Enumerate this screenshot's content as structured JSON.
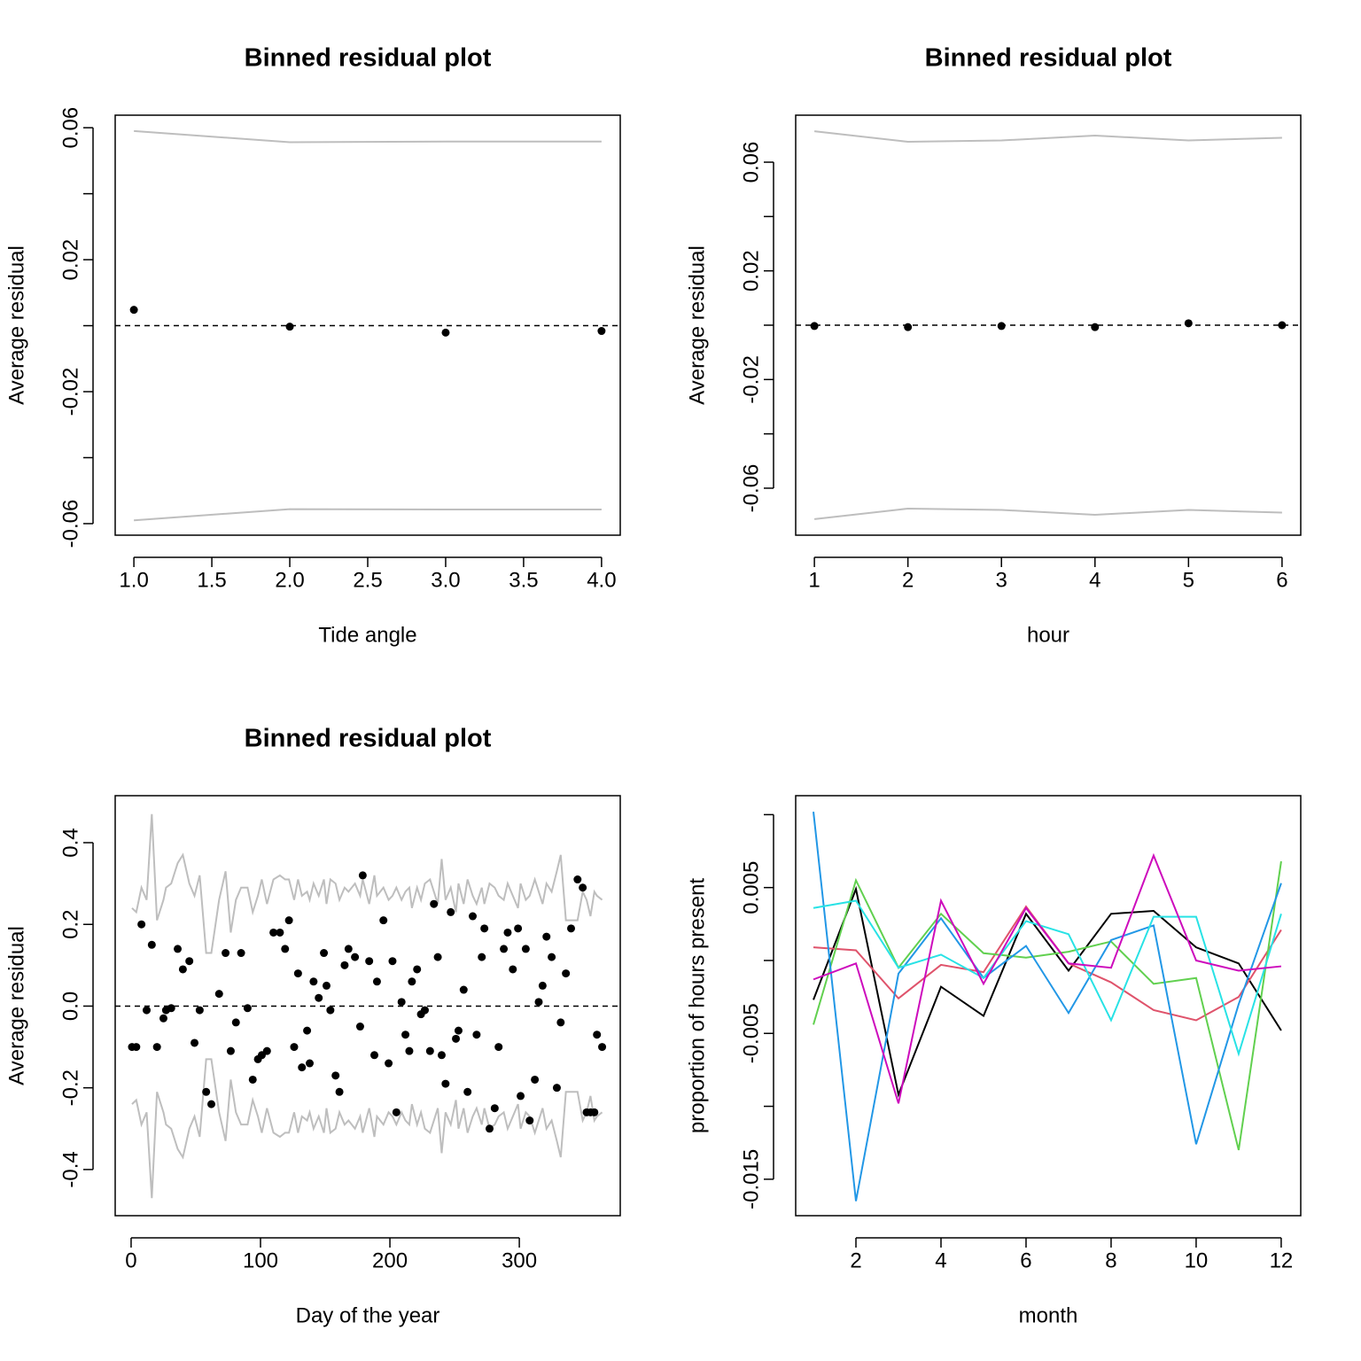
{
  "chart_data": [
    {
      "type": "scatter",
      "title": "Binned residual plot",
      "x_label": "Tide angle",
      "y_label": "Average residual",
      "x": [
        1,
        2,
        3,
        4
      ],
      "values": [
        0.0048,
        -0.0003,
        -0.0021,
        -0.0016
      ],
      "band_upper": [
        0.059,
        0.0556,
        0.0558,
        0.0558
      ],
      "band_lower": [
        -0.059,
        -0.0556,
        -0.0557,
        -0.0557
      ],
      "band_color": "#bebebe",
      "point_color": "#000000",
      "hline": 0,
      "xlim": [
        0.88,
        4.12
      ],
      "ylim": [
        -0.0635,
        0.0638
      ],
      "xticks": [
        {
          "value": 1,
          "label": "1.0"
        },
        1.5,
        {
          "value": 2,
          "label": "2.0"
        },
        2.5,
        {
          "value": 3,
          "label": "3.0"
        },
        3.5,
        {
          "value": 4,
          "label": "4.0"
        }
      ],
      "yticks": [
        -0.06,
        -0.02,
        0.02,
        0.06
      ],
      "yminor_ticks": [
        -0.04,
        0,
        0.04
      ]
    },
    {
      "type": "scatter",
      "title": "Binned residual plot",
      "x_label": "hour",
      "y_label": "Average residual",
      "x": [
        1,
        2,
        3,
        4,
        5,
        6
      ],
      "values": [
        -0.0003,
        -0.0007,
        -0.0003,
        -0.0007,
        0.0007,
        0
      ],
      "band_upper": [
        0.0714,
        0.0675,
        0.068,
        0.0698,
        0.068,
        0.069
      ],
      "band_lower": [
        -0.0714,
        -0.0675,
        -0.068,
        -0.0698,
        -0.068,
        -0.069
      ],
      "band_color": "#bebebe",
      "point_color": "#000000",
      "hline": 0,
      "xlim": [
        0.8,
        6.2
      ],
      "ylim": [
        -0.0773,
        0.0773
      ],
      "xticks": [
        1,
        2,
        3,
        4,
        5,
        6
      ],
      "yticks": [
        -0.06,
        -0.02,
        0.02,
        0.06
      ],
      "yminor_ticks": [
        -0.04,
        0,
        0.04
      ]
    },
    {
      "type": "scatter",
      "title": "Binned residual plot",
      "x_label": "Day of the year",
      "y_label": "Average residual",
      "x": [
        0.7,
        4,
        8,
        12,
        16,
        20,
        25,
        27,
        31,
        36,
        40,
        45,
        49,
        53,
        58,
        62,
        68,
        73,
        77,
        81,
        85,
        90,
        94,
        98,
        101,
        105,
        110,
        115,
        119,
        122,
        126,
        129,
        132,
        136,
        138,
        141,
        145,
        149,
        151,
        154,
        158,
        161,
        165,
        168,
        173,
        177,
        179,
        184,
        188,
        190,
        195,
        199,
        202,
        205,
        209,
        212,
        215,
        217,
        221,
        224,
        227,
        231,
        234,
        237,
        240,
        243,
        247,
        251,
        253,
        257,
        260,
        264,
        267,
        271,
        273,
        277,
        281,
        284,
        288,
        291,
        295,
        299,
        301,
        305,
        308,
        312,
        315,
        318,
        321,
        325,
        329,
        332,
        336,
        340,
        345,
        349,
        352,
        355,
        358,
        360,
        364
      ],
      "values": [
        -0.1,
        -0.1,
        0.2,
        -0.01,
        0.15,
        -0.1,
        -0.03,
        -0.01,
        -0.005,
        0.14,
        0.09,
        0.11,
        -0.09,
        -0.01,
        -0.21,
        -0.24,
        0.03,
        0.13,
        -0.11,
        -0.04,
        0.13,
        -0.005,
        -0.18,
        -0.13,
        -0.12,
        -0.11,
        0.18,
        0.18,
        0.14,
        0.21,
        -0.1,
        0.08,
        -0.15,
        -0.06,
        -0.14,
        0.06,
        0.02,
        0.13,
        0.05,
        -0.01,
        -0.17,
        -0.21,
        0.1,
        0.14,
        0.12,
        -0.05,
        0.32,
        0.11,
        -0.12,
        0.06,
        0.21,
        -0.14,
        0.11,
        -0.26,
        0.01,
        -0.07,
        -0.11,
        0.06,
        0.09,
        -0.02,
        -0.01,
        -0.11,
        0.25,
        0.12,
        -0.12,
        -0.19,
        0.23,
        -0.08,
        -0.06,
        0.04,
        -0.21,
        0.22,
        -0.07,
        0.12,
        0.19,
        -0.3,
        -0.25,
        -0.1,
        0.14,
        0.18,
        0.09,
        0.19,
        -0.22,
        0.14,
        -0.28,
        -0.18,
        0.01,
        0.05,
        0.17,
        0.12,
        -0.2,
        -0.04,
        0.08,
        0.19,
        0.31,
        0.29,
        -0.26,
        -0.26,
        -0.26,
        -0.07,
        -0.1
      ],
      "band_upper": [
        0.24,
        0.23,
        0.29,
        0.26,
        0.47,
        0.21,
        0.26,
        0.29,
        0.3,
        0.35,
        0.37,
        0.3,
        0.27,
        0.32,
        0.13,
        0.13,
        0.26,
        0.33,
        0.18,
        0.26,
        0.29,
        0.29,
        0.23,
        0.27,
        0.31,
        0.25,
        0.31,
        0.32,
        0.31,
        0.31,
        0.26,
        0.31,
        0.27,
        0.28,
        0.26,
        0.3,
        0.27,
        0.31,
        0.25,
        0.31,
        0.3,
        0.26,
        0.29,
        0.28,
        0.3,
        0.27,
        0.31,
        0.25,
        0.32,
        0.27,
        0.29,
        0.26,
        0.27,
        0.29,
        0.26,
        0.28,
        0.29,
        0.24,
        0.29,
        0.26,
        0.3,
        0.31,
        0.28,
        0.25,
        0.36,
        0.26,
        0.29,
        0.23,
        0.3,
        0.25,
        0.31,
        0.27,
        0.25,
        0.29,
        0.25,
        0.3,
        0.29,
        0.27,
        0.26,
        0.3,
        0.27,
        0.24,
        0.3,
        0.26,
        0.27,
        0.31,
        0.28,
        0.25,
        0.3,
        0.28,
        0.33,
        0.37,
        0.21,
        0.21,
        0.21,
        0.28,
        0.26,
        0.22,
        0.28,
        0.27,
        0.26
      ],
      "band_lower": [
        -0.24,
        -0.23,
        -0.29,
        -0.26,
        -0.47,
        -0.21,
        -0.26,
        -0.29,
        -0.3,
        -0.35,
        -0.37,
        -0.3,
        -0.27,
        -0.32,
        -0.13,
        -0.13,
        -0.26,
        -0.33,
        -0.18,
        -0.26,
        -0.29,
        -0.29,
        -0.23,
        -0.27,
        -0.31,
        -0.25,
        -0.31,
        -0.32,
        -0.31,
        -0.31,
        -0.26,
        -0.31,
        -0.27,
        -0.28,
        -0.26,
        -0.3,
        -0.27,
        -0.31,
        -0.25,
        -0.31,
        -0.3,
        -0.26,
        -0.29,
        -0.28,
        -0.3,
        -0.27,
        -0.31,
        -0.25,
        -0.32,
        -0.27,
        -0.29,
        -0.26,
        -0.27,
        -0.29,
        -0.26,
        -0.28,
        -0.29,
        -0.24,
        -0.29,
        -0.26,
        -0.3,
        -0.31,
        -0.28,
        -0.25,
        -0.36,
        -0.26,
        -0.29,
        -0.23,
        -0.3,
        -0.25,
        -0.31,
        -0.27,
        -0.25,
        -0.29,
        -0.25,
        -0.3,
        -0.29,
        -0.27,
        -0.26,
        -0.3,
        -0.27,
        -0.24,
        -0.3,
        -0.26,
        -0.27,
        -0.31,
        -0.28,
        -0.25,
        -0.3,
        -0.28,
        -0.33,
        -0.37,
        -0.21,
        -0.21,
        -0.21,
        -0.28,
        -0.26,
        -0.22,
        -0.28,
        -0.27,
        -0.26
      ],
      "band_color": "#bebebe",
      "point_color": "#000000",
      "hline": 0,
      "xlim": [
        -12.3,
        378
      ],
      "ylim": [
        -0.513,
        0.515
      ],
      "xticks": [
        0,
        100,
        200,
        300
      ],
      "yticks": [
        -0.4,
        -0.2,
        {
          "value": 0,
          "label": "0.0"
        },
        0.2,
        0.4
      ]
    },
    {
      "type": "line",
      "x_label": "month",
      "y_label": "proportion of hours present",
      "x": [
        1,
        2,
        3,
        4,
        5,
        6,
        7,
        8,
        9,
        10,
        11,
        12
      ],
      "series": [
        {
          "color": "#000000",
          "values": [
            -0.0027,
            0.0049,
            -0.0092,
            -0.0018,
            -0.0038,
            0.0032,
            -0.0007,
            0.0032,
            0.0034,
            0.0009,
            -0.0002,
            -0.0048
          ]
        },
        {
          "color": "#DF536B",
          "values": [
            0.0009,
            0.0007,
            -0.0026,
            -0.0003,
            -0.0008,
            0.0037,
            -0.0002,
            -0.0015,
            -0.0034,
            -0.0041,
            -0.0025,
            0.0021
          ]
        },
        {
          "color": "#61D04F",
          "values": [
            -0.0044,
            0.0055,
            -0.0005,
            0.0032,
            0.0005,
            0.0002,
            0.0006,
            0.0013,
            -0.0016,
            -0.0012,
            -0.013,
            0.0068
          ]
        },
        {
          "color": "#2297E6",
          "values": [
            0.0102,
            -0.0165,
            -0.0009,
            0.0029,
            -0.0012,
            0.001,
            -0.0036,
            0.0014,
            0.0024,
            -0.0126,
            -0.003,
            0.0053
          ]
        },
        {
          "color": "#28E2E5",
          "values": [
            0.0036,
            0.0041,
            -0.0005,
            0.0004,
            -0.0012,
            0.0027,
            0.0018,
            -0.0041,
            0.003,
            0.003,
            -0.0064,
            0.0032
          ]
        },
        {
          "color": "#CD0BBC",
          "values": [
            -0.0013,
            -0.0002,
            -0.0098,
            0.0041,
            -0.0016,
            0.0036,
            -0.0002,
            -0.0005,
            0.0072,
            0,
            -0.0007,
            -0.0004
          ]
        }
      ],
      "xlim": [
        0.583,
        12.46
      ],
      "ylim": [
        -0.0175,
        0.0113
      ],
      "xticks": [
        2,
        4,
        6,
        8,
        10,
        12
      ],
      "yticks": [
        -0.015,
        -0.005,
        0.005
      ],
      "yminor_ticks": [
        -0.01,
        0,
        0.01
      ]
    }
  ]
}
